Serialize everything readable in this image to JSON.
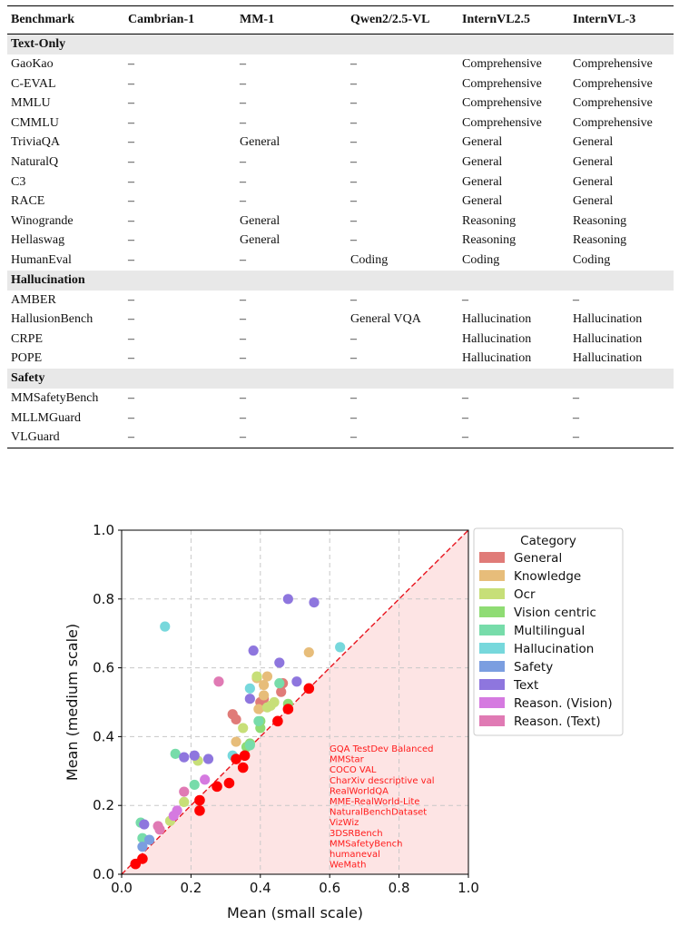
{
  "table": {
    "headers": [
      "Benchmark",
      "Cambrian-1",
      "MM-1",
      "Qwen2/2.5-VL",
      "InternVL2.5",
      "InternVL-3"
    ],
    "sections": [
      {
        "title": "Text-Only",
        "rows": [
          [
            "GaoKao",
            "–",
            "–",
            "–",
            "Comprehensive",
            "Comprehensive"
          ],
          [
            "C-EVAL",
            "–",
            "–",
            "–",
            "Comprehensive",
            "Comprehensive"
          ],
          [
            "MMLU",
            "–",
            "–",
            "–",
            "Comprehensive",
            "Comprehensive"
          ],
          [
            "CMMLU",
            "–",
            "–",
            "–",
            "Comprehensive",
            "Comprehensive"
          ],
          [
            "TriviaQA",
            "–",
            "General",
            "–",
            "General",
            "General"
          ],
          [
            "NaturalQ",
            "–",
            "–",
            "–",
            "General",
            "General"
          ],
          [
            "C3",
            "–",
            "–",
            "–",
            "General",
            "General"
          ],
          [
            "RACE",
            "–",
            "–",
            "–",
            "General",
            "General"
          ],
          [
            "Winogrande",
            "–",
            "General",
            "–",
            "Reasoning",
            "Reasoning"
          ],
          [
            "Hellaswag",
            "–",
            "General",
            "–",
            "Reasoning",
            "Reasoning"
          ],
          [
            "HumanEval",
            "–",
            "–",
            "Coding",
            "Coding",
            "Coding"
          ]
        ]
      },
      {
        "title": "Hallucination",
        "rows": [
          [
            "AMBER",
            "–",
            "–",
            "–",
            "–",
            "–"
          ],
          [
            "HallusionBench",
            "–",
            "–",
            "General VQA",
            "Hallucination",
            "Hallucination"
          ],
          [
            "CRPE",
            "–",
            "–",
            "–",
            "Hallucination",
            "Hallucination"
          ],
          [
            "POPE",
            "–",
            "–",
            "–",
            "Hallucination",
            "Hallucination"
          ]
        ]
      },
      {
        "title": "Safety",
        "rows": [
          [
            "MMSafetyBench",
            "–",
            "–",
            "–",
            "–",
            "–"
          ],
          [
            "MLLMGuard",
            "–",
            "–",
            "–",
            "–",
            "–"
          ],
          [
            "VLGuard",
            "–",
            "–",
            "–",
            "–",
            "–"
          ]
        ]
      }
    ]
  },
  "chart_data": {
    "type": "scatter",
    "xlabel": "Mean (small scale)",
    "ylabel": "Mean (medium scale)",
    "xlim": [
      0,
      1
    ],
    "ylim": [
      0,
      1
    ],
    "xticks": [
      "0.0",
      "0.2",
      "0.4",
      "0.6",
      "0.8",
      "1.0"
    ],
    "yticks": [
      "0.0",
      "0.2",
      "0.4",
      "0.6",
      "0.8",
      "1.0"
    ],
    "grid": true,
    "diagonal_line": true,
    "shaded_region": "below diagonal",
    "legend_title": "Category",
    "legend_position": "right outside",
    "series": [
      {
        "name": "General",
        "color": "#e07b78",
        "points": [
          [
            0.32,
            0.465
          ],
          [
            0.4,
            0.5
          ],
          [
            0.41,
            0.51
          ],
          [
            0.46,
            0.53
          ],
          [
            0.465,
            0.555
          ],
          [
            0.4,
            0.485
          ],
          [
            0.33,
            0.45
          ]
        ]
      },
      {
        "name": "Knowledge",
        "color": "#e7bd7a",
        "points": [
          [
            0.39,
            0.57
          ],
          [
            0.42,
            0.575
          ],
          [
            0.54,
            0.645
          ],
          [
            0.41,
            0.55
          ],
          [
            0.33,
            0.385
          ],
          [
            0.395,
            0.48
          ],
          [
            0.41,
            0.52
          ]
        ]
      },
      {
        "name": "Ocr",
        "color": "#c7df78",
        "points": [
          [
            0.35,
            0.425
          ],
          [
            0.43,
            0.49
          ],
          [
            0.44,
            0.5
          ],
          [
            0.39,
            0.575
          ],
          [
            0.22,
            0.33
          ],
          [
            0.18,
            0.21
          ],
          [
            0.14,
            0.155
          ],
          [
            0.42,
            0.485
          ]
        ]
      },
      {
        "name": "Vision centric",
        "color": "#8fdc74",
        "points": [
          [
            0.36,
            0.37
          ],
          [
            0.37,
            0.38
          ],
          [
            0.4,
            0.425
          ],
          [
            0.4,
            0.445
          ],
          [
            0.48,
            0.495
          ]
        ]
      },
      {
        "name": "Multilingual",
        "color": "#77dcaa",
        "points": [
          [
            0.155,
            0.35
          ],
          [
            0.21,
            0.26
          ],
          [
            0.06,
            0.105
          ],
          [
            0.37,
            0.375
          ],
          [
            0.395,
            0.445
          ],
          [
            0.455,
            0.555
          ],
          [
            0.055,
            0.15
          ]
        ]
      },
      {
        "name": "Hallucination",
        "color": "#77d8dc",
        "points": [
          [
            0.125,
            0.72
          ],
          [
            0.63,
            0.66
          ],
          [
            0.37,
            0.54
          ],
          [
            0.32,
            0.345
          ]
        ]
      },
      {
        "name": "Safety",
        "color": "#7b9ee0",
        "points": [
          [
            0.06,
            0.08
          ],
          [
            0.08,
            0.1
          ]
        ]
      },
      {
        "name": "Text",
        "color": "#8e76de",
        "points": [
          [
            0.48,
            0.8
          ],
          [
            0.555,
            0.79
          ],
          [
            0.38,
            0.65
          ],
          [
            0.455,
            0.615
          ],
          [
            0.505,
            0.56
          ],
          [
            0.37,
            0.51
          ],
          [
            0.21,
            0.345
          ],
          [
            0.18,
            0.34
          ],
          [
            0.25,
            0.335
          ],
          [
            0.065,
            0.145
          ]
        ]
      },
      {
        "name": "Reason. (Vision)",
        "color": "#d57ae0",
        "points": [
          [
            0.24,
            0.275
          ],
          [
            0.16,
            0.185
          ],
          [
            0.15,
            0.17
          ]
        ]
      },
      {
        "name": "Reason. (Text)",
        "color": "#e07ab4",
        "points": [
          [
            0.28,
            0.56
          ],
          [
            0.18,
            0.24
          ],
          [
            0.105,
            0.14
          ],
          [
            0.11,
            0.13
          ]
        ]
      }
    ],
    "highlight": {
      "color": "#ff0000",
      "points": [
        [
          0.54,
          0.54
        ],
        [
          0.48,
          0.48
        ],
        [
          0.45,
          0.445
        ],
        [
          0.355,
          0.345
        ],
        [
          0.33,
          0.335
        ],
        [
          0.35,
          0.31
        ],
        [
          0.31,
          0.265
        ],
        [
          0.275,
          0.255
        ],
        [
          0.225,
          0.215
        ],
        [
          0.225,
          0.185
        ],
        [
          0.06,
          0.045
        ],
        [
          0.04,
          0.03
        ]
      ],
      "labels": [
        "GQA TestDev Balanced",
        "MMStar",
        "COCO VAL",
        "CharXiv descriptive val",
        "RealWorldQA",
        "MME-RealWorld-Lite",
        "NaturalBenchDataset",
        "VizWiz",
        "3DSRBench",
        "MMSafetyBench",
        "humaneval",
        "WeMath"
      ]
    }
  }
}
